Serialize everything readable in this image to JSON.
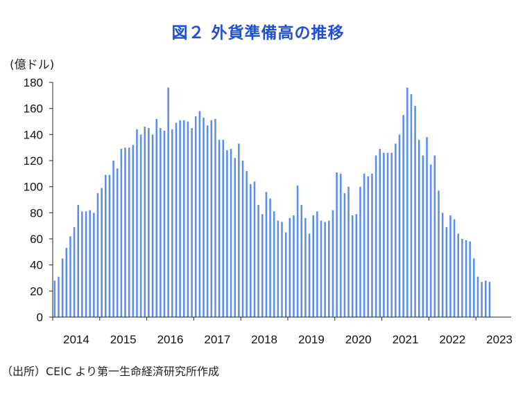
{
  "chart_data": {
    "type": "bar",
    "title": "図２ 外貨準備高の推移",
    "ylabel": "(億ドル)",
    "xlabel": "",
    "source": "（出所）CEIC より第一生命経済研究所作成",
    "ylim": [
      0,
      180
    ],
    "yticks": [
      0,
      20,
      40,
      60,
      80,
      100,
      120,
      140,
      160,
      180
    ],
    "year_labels": [
      "2014",
      "2015",
      "2016",
      "2017",
      "2018",
      "2019",
      "2020",
      "2021",
      "2022",
      "2023"
    ],
    "start": "2014-01",
    "series": [
      {
        "name": "外貨準備高",
        "values": [
          28,
          31,
          45,
          53,
          62,
          69,
          86,
          81,
          81,
          82,
          80,
          95,
          99,
          109,
          109,
          120,
          114,
          129,
          130,
          130,
          132,
          144,
          140,
          146,
          145,
          140,
          152,
          145,
          143,
          176,
          144,
          149,
          151,
          151,
          150,
          145,
          154,
          158,
          153,
          147,
          151,
          152,
          136,
          136,
          128,
          129,
          122,
          133,
          120,
          112,
          102,
          104,
          86,
          79,
          96,
          91,
          81,
          74,
          73,
          65,
          76,
          78,
          101,
          86,
          76,
          64,
          78,
          81,
          74,
          73,
          74,
          82,
          111,
          110,
          95,
          100,
          78,
          79,
          100,
          110,
          108,
          110,
          124,
          129,
          126,
          126,
          126,
          133,
          140,
          155,
          176,
          171,
          162,
          136,
          124,
          138,
          117,
          124,
          97,
          80,
          69,
          78,
          75,
          64,
          60,
          59,
          58,
          45,
          31,
          27,
          28,
          27
        ]
      }
    ]
  }
}
